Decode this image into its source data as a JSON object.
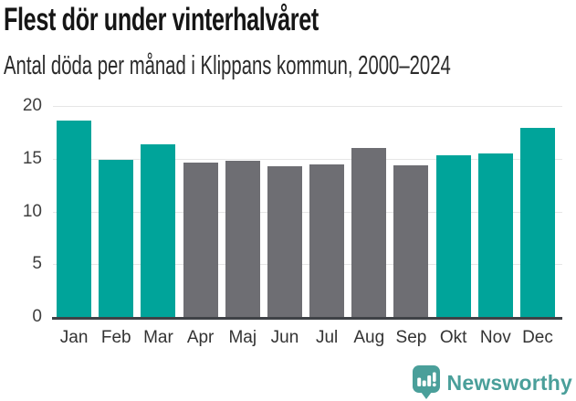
{
  "chart_data": {
    "type": "bar",
    "title": "Flest dör under vinterhalvåret",
    "subtitle": "Antal döda per månad i Klippans kommun, 2000–2024",
    "categories": [
      "Jan",
      "Feb",
      "Mar",
      "Apr",
      "Maj",
      "Jun",
      "Jul",
      "Aug",
      "Sep",
      "Okt",
      "Nov",
      "Dec"
    ],
    "values": [
      18.6,
      14.9,
      16.4,
      14.6,
      14.8,
      14.3,
      14.5,
      16.0,
      14.4,
      15.3,
      15.5,
      17.9
    ],
    "bar_roles": [
      "highlight",
      "highlight",
      "highlight",
      "muted",
      "muted",
      "muted",
      "muted",
      "muted",
      "muted",
      "highlight",
      "highlight",
      "highlight"
    ],
    "colors": {
      "highlight": "#00a49a",
      "muted": "#6e6e73",
      "axis": "#3f4246",
      "grid": "#e6e6e6",
      "tick_text": "#3f3f3f"
    },
    "xlabel": "",
    "ylabel": "",
    "ylim": [
      0,
      20
    ],
    "yticks": [
      0,
      5,
      10,
      15,
      20
    ],
    "grid": true,
    "legend": "none"
  },
  "footer": {
    "brand": "Newsworthy",
    "brand_color": "#4a9f9a",
    "logo": "newsworthy-bubble-chart-icon"
  }
}
